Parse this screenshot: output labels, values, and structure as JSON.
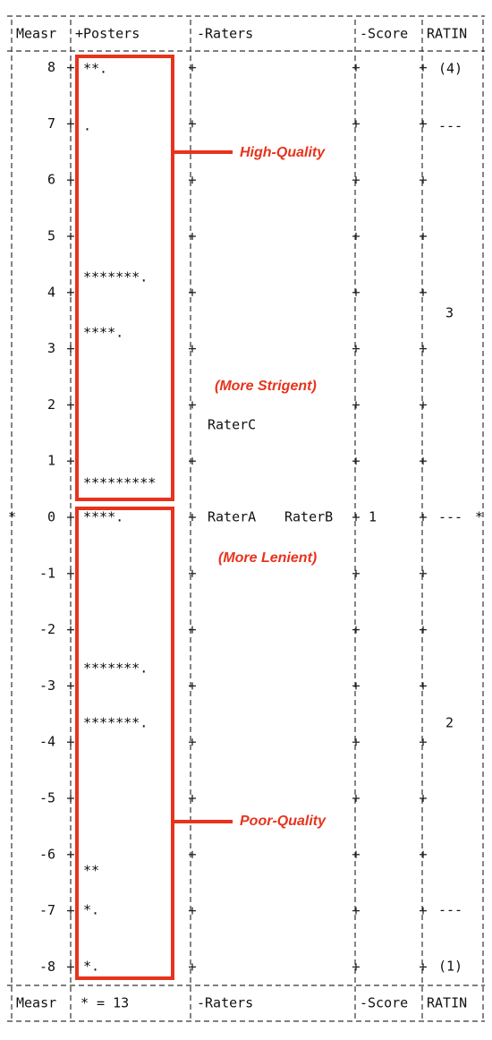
{
  "header": [
    "Measr",
    "+Posters",
    "-Raters",
    "-Score",
    "RATIN"
  ],
  "footer": [
    "Measr",
    "* = 13",
    "-Raters",
    "-Score",
    "RATIN"
  ],
  "measures": [
    8,
    7,
    6,
    5,
    4,
    3,
    2,
    1,
    0,
    -1,
    -2,
    -3,
    -4,
    -5,
    -6,
    -7,
    -8
  ],
  "posters": [
    "**.",
    ".",
    "*******.",
    "****.",
    "*********",
    "****.",
    "*******.",
    "*******.",
    "**",
    "*.",
    "*."
  ],
  "raters": [
    "RaterC",
    "RaterA",
    "RaterB"
  ],
  "score": [
    1
  ],
  "ratings": [
    "(4)",
    "---",
    "3",
    "---",
    "2",
    "---",
    "(1)"
  ],
  "zero_marker": "*",
  "annotations": [
    "High-Quality",
    "(More Strigent)",
    "(More Lenient)",
    "Poor-Quality"
  ]
}
